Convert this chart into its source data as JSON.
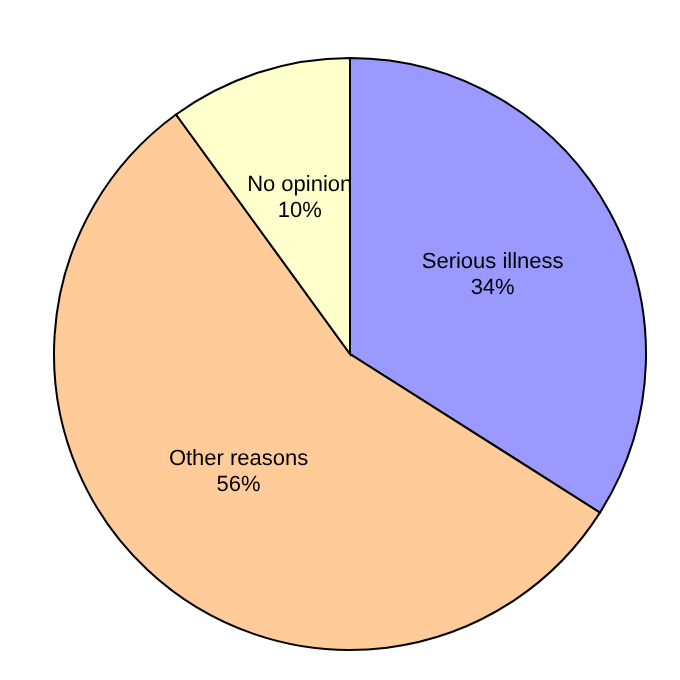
{
  "chart_data": {
    "type": "pie",
    "categories": [
      "Serious illness",
      "Other reasons",
      "No opinion"
    ],
    "values": [
      34,
      56,
      10
    ],
    "colors": [
      "#9999ff",
      "#ffcc99",
      "#ffffcc"
    ],
    "value_labels": [
      "34%",
      "56%",
      "10%"
    ]
  }
}
